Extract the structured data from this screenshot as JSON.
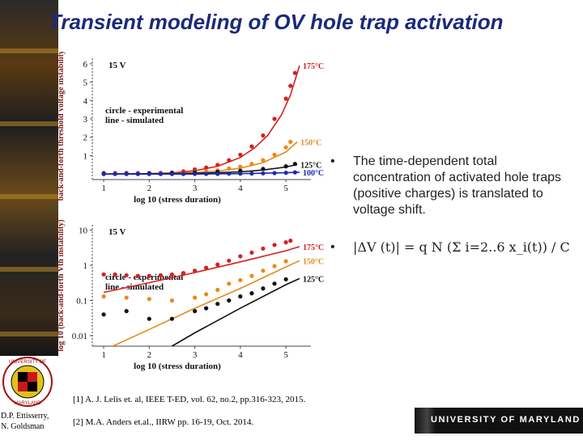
{
  "slide": {
    "title": "Transient modeling of OV hole trap activation",
    "authors_line1": "D.P. Ettisserry,",
    "authors_line2": "N. Goldsman",
    "bullet1": "The time-dependent total concentration of activated hole traps (positive charges) is translated to voltage shift.",
    "formula_text": "|ΔV (t)| = q N (Σ i=2..6 x_i(t)) / C",
    "ref1": "[1] A. J. Lelis et. al, IEEE T-ED, vol. 62, no.2, pp.316-323, 2015.",
    "ref2": "[2] M.A. Anders et.al., IIRW pp. 16-19, Oct. 2014.",
    "footer_brand": "UNIVERSITY OF MARYLAND",
    "seal_text": "UNIVERSITY OF MARYLAND"
  },
  "colors": {
    "title": "#1a2a7a",
    "red": "#d62020",
    "orange": "#e88a1a",
    "blue": "#1a2ab0",
    "black": "#111111",
    "axis_label": "#7a1a1a"
  },
  "chart_data": [
    {
      "type": "line",
      "scale": "linear",
      "voltage_label": "15 V",
      "xlabel": "log 10 (stress duration)",
      "ylabel": "back-and-forth threshold voltage instability (V)",
      "xticks": [
        1,
        2,
        3,
        4,
        5
      ],
      "yticks": [
        1,
        2,
        3,
        4,
        5,
        6
      ],
      "xlim": [
        0.75,
        5.55
      ],
      "ylim": [
        -0.3,
        6.3
      ],
      "legend": [
        "circle - experimental",
        "line - simulated"
      ],
      "series": [
        {
          "name": "175°C",
          "color": "#d62020",
          "points_x": [
            1.0,
            1.25,
            1.5,
            1.75,
            2.0,
            2.25,
            2.5,
            2.75,
            3.0,
            3.25,
            3.5,
            3.75,
            4.0,
            4.25,
            4.5,
            4.75,
            5.0,
            5.1,
            5.2
          ],
          "points_y": [
            0.05,
            0.05,
            0.05,
            0.05,
            0.05,
            0.06,
            0.08,
            0.15,
            0.25,
            0.35,
            0.5,
            0.75,
            1.05,
            1.5,
            2.1,
            3.0,
            4.1,
            4.8,
            5.5
          ],
          "line_x": [
            1.0,
            2.0,
            2.5,
            3.0,
            3.5,
            4.0,
            4.3,
            4.6,
            4.9,
            5.1,
            5.3
          ],
          "line_y": [
            0.0,
            0.02,
            0.06,
            0.18,
            0.42,
            0.9,
            1.4,
            2.1,
            3.2,
            4.3,
            5.9
          ]
        },
        {
          "name": "150°C",
          "color": "#e88a1a",
          "points_x": [
            1.0,
            1.5,
            2.0,
            2.5,
            3.0,
            3.25,
            3.5,
            3.75,
            4.0,
            4.25,
            4.5,
            4.75,
            5.0,
            5.1
          ],
          "points_y": [
            0.0,
            0.0,
            0.02,
            0.05,
            0.1,
            0.15,
            0.2,
            0.3,
            0.4,
            0.55,
            0.75,
            1.05,
            1.45,
            1.75
          ],
          "line_x": [
            1.0,
            2.0,
            3.0,
            3.5,
            4.0,
            4.5,
            5.0,
            5.25
          ],
          "line_y": [
            0.0,
            0.02,
            0.08,
            0.16,
            0.32,
            0.62,
            1.2,
            1.75
          ]
        },
        {
          "name": "125°C",
          "color": "#111111",
          "points_x": [
            1.0,
            1.5,
            2.0,
            2.5,
            3.0,
            3.5,
            4.0,
            4.5,
            5.0,
            5.2
          ],
          "points_y": [
            0.02,
            0.02,
            0.03,
            0.05,
            0.08,
            0.12,
            0.18,
            0.28,
            0.42,
            0.55
          ],
          "line_x": [
            1.0,
            3.0,
            4.0,
            4.5,
            5.0,
            5.25
          ],
          "line_y": [
            0.0,
            0.04,
            0.12,
            0.22,
            0.38,
            0.52
          ]
        },
        {
          "name": "100°C",
          "color": "#1a2ab0",
          "points_x": [
            1.0,
            1.25,
            1.5,
            1.75,
            2.0,
            2.25,
            2.5,
            2.75,
            3.0,
            3.25,
            3.5,
            3.75,
            4.0,
            4.25,
            4.5,
            4.75,
            5.0,
            5.2
          ],
          "points_y": [
            0.0,
            0.0,
            0.0,
            0.0,
            0.0,
            0.0,
            0.0,
            0.0,
            0.01,
            0.01,
            0.01,
            0.02,
            0.02,
            0.03,
            0.04,
            0.05,
            0.07,
            0.09
          ],
          "line_x": [
            1.0,
            3.0,
            4.0,
            5.0,
            5.3
          ],
          "line_y": [
            0.0,
            0.0,
            0.02,
            0.07,
            0.1
          ]
        }
      ]
    },
    {
      "type": "line",
      "scale": "log",
      "voltage_label": "15 V",
      "xlabel": "log 10 (stress duration)",
      "ylabel": "log 10 (back-and-forth Vth instability)",
      "xticks": [
        1,
        2,
        3,
        4,
        5
      ],
      "yticks": [
        0.01,
        0.1,
        1,
        10
      ],
      "ytick_labels": [
        "0.01",
        "0.1",
        "1",
        "10"
      ],
      "xlim": [
        0.75,
        5.55
      ],
      "ylim_log": [
        -2.3,
        1.15
      ],
      "legend": [
        "circle - experimental",
        "line - simulated"
      ],
      "series": [
        {
          "name": "175°C",
          "color": "#d62020",
          "points_x": [
            1.0,
            1.25,
            1.5,
            1.75,
            2.0,
            2.25,
            2.5,
            2.75,
            3.0,
            3.25,
            3.5,
            3.75,
            4.0,
            4.25,
            4.5,
            4.75,
            5.0,
            5.1
          ],
          "points_y": [
            0.55,
            0.55,
            0.52,
            0.5,
            0.5,
            0.52,
            0.55,
            0.6,
            0.7,
            0.85,
            1.05,
            1.35,
            1.8,
            2.3,
            3.0,
            3.8,
            4.5,
            5.0
          ],
          "line_x": [
            1.0,
            2.0,
            3.0,
            4.0,
            5.0,
            5.3
          ],
          "line_y": [
            0.17,
            0.32,
            0.62,
            1.25,
            2.6,
            3.4
          ]
        },
        {
          "name": "150°C",
          "color": "#e88a1a",
          "points_x": [
            1.0,
            1.5,
            2.0,
            2.5,
            3.0,
            3.25,
            3.5,
            3.75,
            4.0,
            4.25,
            4.5,
            4.75,
            5.0
          ],
          "points_y": [
            0.13,
            0.12,
            0.11,
            0.1,
            0.12,
            0.15,
            0.2,
            0.3,
            0.38,
            0.5,
            0.7,
            0.95,
            1.3
          ],
          "line_x": [
            1.2,
            2.0,
            3.0,
            4.0,
            5.0,
            5.3
          ],
          "line_y": [
            0.005,
            0.015,
            0.06,
            0.22,
            0.9,
            1.35
          ]
        },
        {
          "name": "125°C",
          "color": "#111111",
          "points_x": [
            1.0,
            1.5,
            2.0,
            2.5,
            3.0,
            3.25,
            3.5,
            3.75,
            4.0,
            4.25,
            4.5,
            4.75,
            5.0
          ],
          "points_y": [
            0.04,
            0.05,
            0.03,
            0.03,
            0.05,
            0.06,
            0.08,
            0.1,
            0.13,
            0.16,
            0.22,
            0.3,
            0.4
          ],
          "line_x": [
            2.5,
            3.0,
            4.0,
            5.0,
            5.3
          ],
          "line_y": [
            0.005,
            0.012,
            0.06,
            0.28,
            0.42
          ]
        }
      ]
    }
  ]
}
